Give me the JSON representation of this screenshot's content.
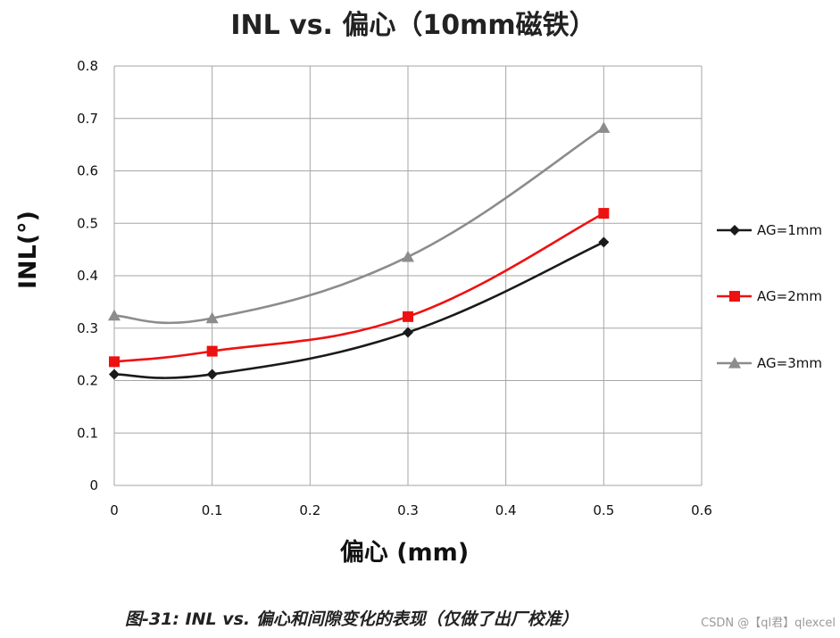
{
  "chart_data": {
    "type": "line",
    "title": "INL vs. 偏心（10mm磁铁）",
    "xlabel": "偏心 (mm)",
    "ylabel": "INL(°)",
    "xlim": [
      0,
      0.6
    ],
    "ylim": [
      0,
      0.8
    ],
    "xticks": [
      "0",
      "0.1",
      "0.2",
      "0.3",
      "0.4",
      "0.5",
      "0.6"
    ],
    "yticks": [
      "0",
      "0.1",
      "0.2",
      "0.3",
      "0.4",
      "0.5",
      "0.6",
      "0.7",
      "0.8"
    ],
    "x": [
      0,
      0.1,
      0.3,
      0.5
    ],
    "grid": true,
    "legend_position": "right",
    "series": [
      {
        "name": "AG=1mm",
        "values": [
          0.212,
          0.212,
          0.292,
          0.464
        ],
        "color": "#1a1a1a",
        "marker": "diamond"
      },
      {
        "name": "AG=2mm",
        "values": [
          0.236,
          0.256,
          0.322,
          0.519
        ],
        "color": "#ee1111",
        "marker": "square"
      },
      {
        "name": "AG=3mm",
        "values": [
          0.324,
          0.319,
          0.436,
          0.682
        ],
        "color": "#8c8c8c",
        "marker": "triangle"
      }
    ]
  },
  "caption": "图-31: INL vs. 偏心和间隙变化的表现（仅做了出厂校准）",
  "watermark": "CSDN @【ql君】qlexcel"
}
